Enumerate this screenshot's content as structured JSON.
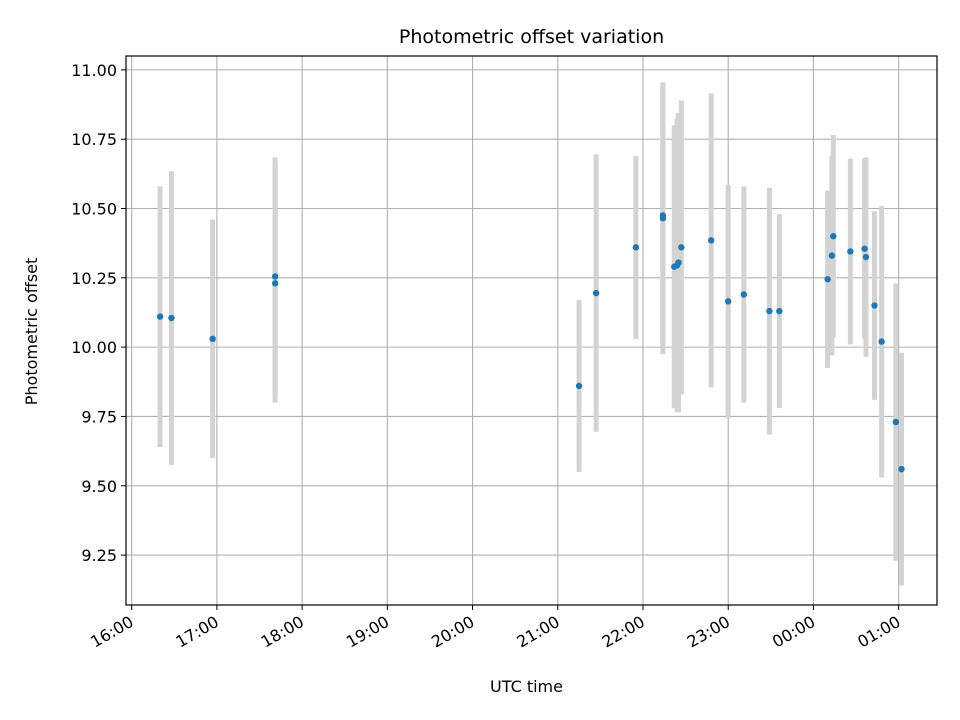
{
  "chart_data": {
    "type": "scatter",
    "title": "Photometric offset variation",
    "xlabel": "UTC time",
    "ylabel": "Photometric offset",
    "grid": true,
    "x_ticks": [
      "16:00",
      "17:00",
      "18:00",
      "19:00",
      "20:00",
      "21:00",
      "22:00",
      "23:00",
      "00:00",
      "01:00"
    ],
    "y_ticks": [
      "9.25",
      "9.50",
      "9.75",
      "10.00",
      "10.25",
      "10.50",
      "10.75",
      "11.00"
    ],
    "ylim": [
      9.07,
      11.05
    ],
    "xlim": [
      "15:56",
      "01:27"
    ],
    "colors": {
      "points": "#1f77b4",
      "error_bars": "#d3d3d3",
      "grid": "#b0b0b0"
    },
    "points": [
      {
        "x": "16:20",
        "y": 10.11,
        "yerr": 0.47
      },
      {
        "x": "16:28",
        "y": 10.105,
        "yerr": 0.53
      },
      {
        "x": "16:57",
        "y": 10.03,
        "yerr": 0.43
      },
      {
        "x": "17:41",
        "y": 10.255,
        "yerr": 0.43
      },
      {
        "x": "17:41",
        "y": 10.23,
        "yerr": 0.43
      },
      {
        "x": "21:15",
        "y": 9.86,
        "yerr": 0.31
      },
      {
        "x": "21:27",
        "y": 10.195,
        "yerr": 0.5
      },
      {
        "x": "21:55",
        "y": 10.36,
        "yerr": 0.33
      },
      {
        "x": "22:14",
        "y": 10.475,
        "yerr": 0.48
      },
      {
        "x": "22:14",
        "y": 10.465,
        "yerr": 0.49
      },
      {
        "x": "22:22",
        "y": 10.29,
        "yerr": 0.51
      },
      {
        "x": "22:24",
        "y": 10.295,
        "yerr": 0.53
      },
      {
        "x": "22:25",
        "y": 10.305,
        "yerr": 0.54
      },
      {
        "x": "22:27",
        "y": 10.36,
        "yerr": 0.53
      },
      {
        "x": "22:48",
        "y": 10.385,
        "yerr": 0.53
      },
      {
        "x": "23:00",
        "y": 10.165,
        "yerr": 0.42
      },
      {
        "x": "23:11",
        "y": 10.19,
        "yerr": 0.39
      },
      {
        "x": "23:29",
        "y": 10.13,
        "yerr": 0.445
      },
      {
        "x": "23:36",
        "y": 10.13,
        "yerr": 0.35
      },
      {
        "x": "00:10",
        "y": 10.245,
        "yerr": 0.32
      },
      {
        "x": "00:13",
        "y": 10.33,
        "yerr": 0.36
      },
      {
        "x": "00:14",
        "y": 10.4,
        "yerr": 0.365
      },
      {
        "x": "00:26",
        "y": 10.345,
        "yerr": 0.335
      },
      {
        "x": "00:36",
        "y": 10.355,
        "yerr": 0.325
      },
      {
        "x": "00:37",
        "y": 10.325,
        "yerr": 0.36
      },
      {
        "x": "00:43",
        "y": 10.15,
        "yerr": 0.34
      },
      {
        "x": "00:48",
        "y": 10.02,
        "yerr": 0.49
      },
      {
        "x": "00:58",
        "y": 9.73,
        "yerr": 0.5
      },
      {
        "x": "01:02",
        "y": 9.56,
        "yerr": 0.42
      }
    ]
  }
}
